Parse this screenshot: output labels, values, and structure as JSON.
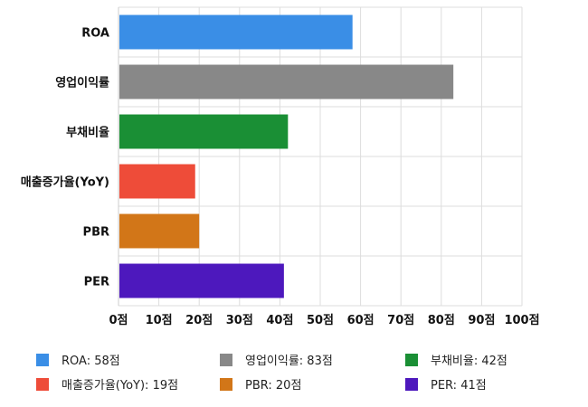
{
  "chart_data": {
    "type": "bar",
    "orientation": "horizontal",
    "categories": [
      "ROA",
      "영업이익률",
      "부채비율",
      "매출증가율(YoY)",
      "PBR",
      "PER"
    ],
    "values": [
      58,
      83,
      42,
      19,
      20,
      41
    ],
    "colors": [
      "#3a8ee6",
      "#888888",
      "#1a8f35",
      "#ee4c39",
      "#d27618",
      "#4d18bd"
    ],
    "xlim": [
      0,
      100
    ],
    "x_ticks": [
      0,
      10,
      20,
      30,
      40,
      50,
      60,
      70,
      80,
      90,
      100
    ],
    "x_tick_suffix": "점",
    "grid": true,
    "legend_position": "bottom",
    "legend": [
      {
        "label": "ROA: 58점",
        "color": "#3a8ee6"
      },
      {
        "label": "영업이익률: 83점",
        "color": "#888888"
      },
      {
        "label": "부채비율: 42점",
        "color": "#1a8f35"
      },
      {
        "label": "매출증가율(YoY): 19점",
        "color": "#ee4c39"
      },
      {
        "label": "PBR: 20점",
        "color": "#d27618"
      },
      {
        "label": "PER: 41점",
        "color": "#4d18bd"
      }
    ]
  }
}
